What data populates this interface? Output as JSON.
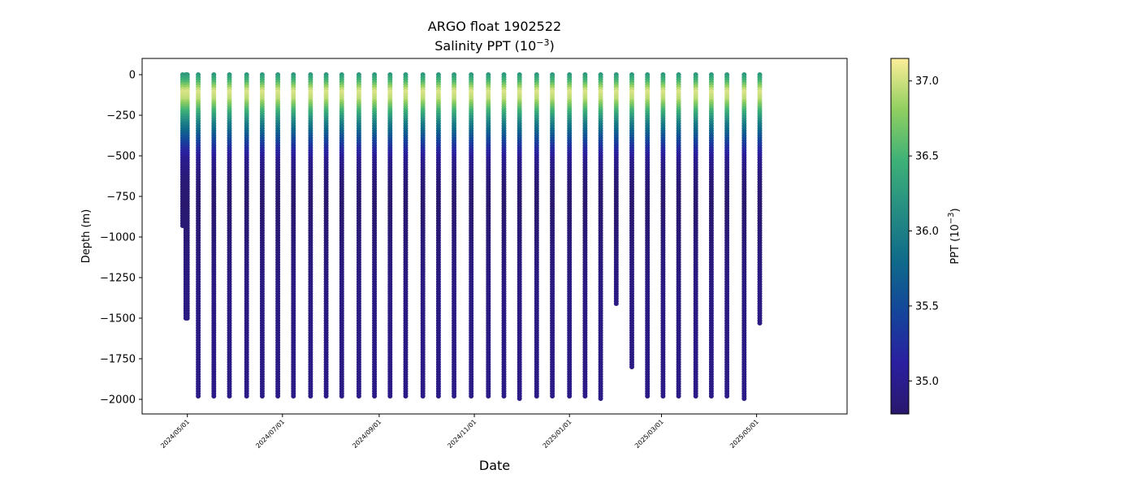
{
  "chart_data": {
    "type": "scatter",
    "title": "ARGO float 1902522",
    "subtitle_prefix": "Salinity PPT (10",
    "subtitle_exp": "−3",
    "subtitle_suffix": ")",
    "xlabel": "Date",
    "ylabel": "Depth (m)",
    "xlim": [
      "2024-04-02",
      "2025-06-28"
    ],
    "ylim": [
      -2090,
      100
    ],
    "x_ticks": [
      "2024/05/01",
      "2024/07/01",
      "2024/09/01",
      "2024/11/01",
      "2025/01/01",
      "2025/03/01",
      "2025/05/01"
    ],
    "y_ticks": [
      0,
      -250,
      -500,
      -750,
      -1000,
      -1250,
      -1500,
      -1750,
      -2000
    ],
    "colorbar": {
      "label_prefix": "PPT (10",
      "label_exp": "−3",
      "label_suffix": ")",
      "range": [
        34.78,
        37.15
      ],
      "ticks": [
        35.0,
        35.5,
        36.0,
        36.5,
        37.0
      ],
      "colormap": "haline",
      "colors": [
        "#2a186c",
        "#2a1fa0",
        "#14459b",
        "#0f6a8a",
        "#268d83",
        "#3eb177",
        "#91cf60",
        "#fdee99"
      ]
    },
    "profiles": [
      {
        "date": "2024-04-28",
        "max_depth": -935
      },
      {
        "date": "2024-04-30",
        "max_depth": -1505
      },
      {
        "date": "2024-05-01",
        "max_depth": -1505
      },
      {
        "date": "2024-05-08",
        "max_depth": -1990
      },
      {
        "date": "2024-05-18",
        "max_depth": -1985
      },
      {
        "date": "2024-05-28",
        "max_depth": -1990
      },
      {
        "date": "2024-06-08",
        "max_depth": -1990
      },
      {
        "date": "2024-06-18",
        "max_depth": -1990
      },
      {
        "date": "2024-06-28",
        "max_depth": -1985
      },
      {
        "date": "2024-07-08",
        "max_depth": -1990
      },
      {
        "date": "2024-07-19",
        "max_depth": -1990
      },
      {
        "date": "2024-07-29",
        "max_depth": -1990
      },
      {
        "date": "2024-08-08",
        "max_depth": -1990
      },
      {
        "date": "2024-08-19",
        "max_depth": -1990
      },
      {
        "date": "2024-08-29",
        "max_depth": -1990
      },
      {
        "date": "2024-09-08",
        "max_depth": -1990
      },
      {
        "date": "2024-09-18",
        "max_depth": -1990
      },
      {
        "date": "2024-09-29",
        "max_depth": -1990
      },
      {
        "date": "2024-10-09",
        "max_depth": -1990
      },
      {
        "date": "2024-10-19",
        "max_depth": -1990
      },
      {
        "date": "2024-10-30",
        "max_depth": -1990
      },
      {
        "date": "2024-11-10",
        "max_depth": -1990
      },
      {
        "date": "2024-11-20",
        "max_depth": -1990
      },
      {
        "date": "2024-11-30",
        "max_depth": -1995
      },
      {
        "date": "2024-12-11",
        "max_depth": -1990
      },
      {
        "date": "2024-12-21",
        "max_depth": -1990
      },
      {
        "date": "2025-01-01",
        "max_depth": -1990
      },
      {
        "date": "2025-01-11",
        "max_depth": -1990
      },
      {
        "date": "2025-01-21",
        "max_depth": -1995
      },
      {
        "date": "2025-01-31",
        "max_depth": -1415
      },
      {
        "date": "2025-02-10",
        "max_depth": -1810
      },
      {
        "date": "2025-02-20",
        "max_depth": -1990
      },
      {
        "date": "2025-03-02",
        "max_depth": -1980
      },
      {
        "date": "2025-03-12",
        "max_depth": -1990
      },
      {
        "date": "2025-03-23",
        "max_depth": -1990
      },
      {
        "date": "2025-04-02",
        "max_depth": -1990
      },
      {
        "date": "2025-04-12",
        "max_depth": -1990
      },
      {
        "date": "2025-04-23",
        "max_depth": -1995
      },
      {
        "date": "2025-05-03",
        "max_depth": -1540
      }
    ]
  }
}
